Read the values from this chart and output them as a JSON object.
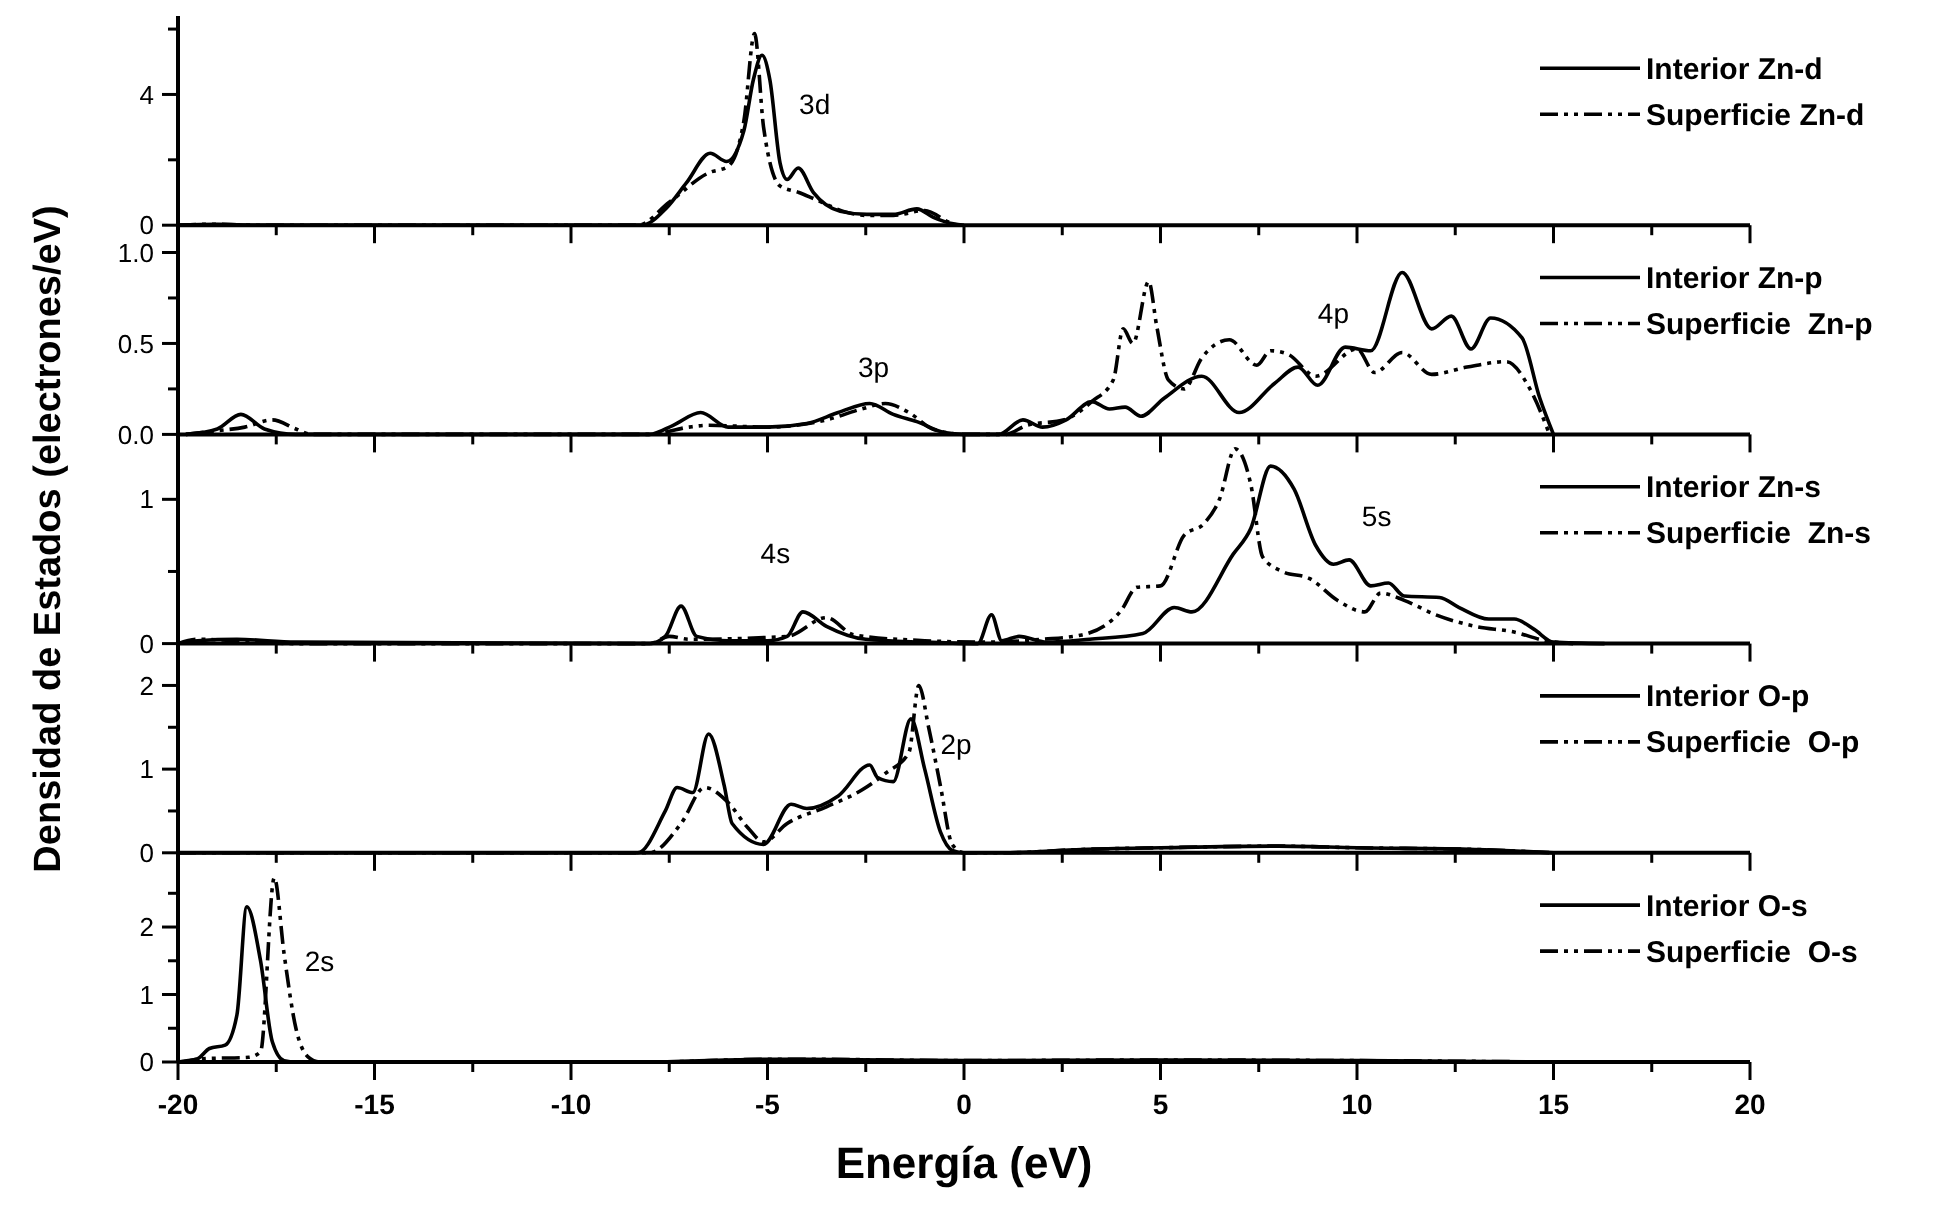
{
  "chart_data": [
    {
      "type": "line",
      "xlim": [
        -20,
        20
      ],
      "ylim": [
        0,
        6.4
      ],
      "tick_labels": "y",
      "legend": "right",
      "xticks": [
        -20,
        {
          "value": -17.5,
          "label": null
        },
        -15,
        {
          "value": -12.5,
          "label": null
        },
        -10,
        {
          "value": -7.5,
          "label": null
        },
        -5,
        {
          "value": -2.5,
          "label": null
        },
        0,
        {
          "value": 2.5,
          "label": null
        },
        5,
        {
          "value": 7.5,
          "label": null
        },
        10,
        {
          "value": 12.5,
          "label": null
        },
        15,
        {
          "value": 17.5,
          "label": null
        },
        20
      ],
      "yticks": [
        0,
        {
          "value": 2,
          "label": null
        },
        4,
        {
          "value": 6,
          "label": null
        }
      ],
      "annotations": [
        "3d"
      ],
      "series": [
        {
          "name": "Interior Zn-d",
          "color": "#000000",
          "line_style": "solid",
          "x": [
            -20,
            -19,
            -18,
            -8.2,
            -7.57,
            -7.06,
            -6.46,
            -6.04,
            -5.6,
            -5.36,
            -5.14,
            -4.94,
            -4.68,
            -4.5,
            -4.22,
            -3.83,
            -3.15,
            -2.47,
            -1.8,
            -1.2,
            -0.78,
            -0.27,
            0
          ],
          "values": [
            0,
            0.03,
            0,
            0,
            0.53,
            1.3,
            2.2,
            1.95,
            2.9,
            4.45,
            5.2,
            4.45,
            1.9,
            1.4,
            1.75,
            1,
            0.43,
            0.33,
            0.33,
            0.5,
            0.24,
            0.04,
            0
          ]
        },
        {
          "name": "Superficie Zn-d",
          "color": "#000000",
          "line_style": "dashdot",
          "x": [
            -20,
            -19,
            -18,
            -8.3,
            -7.5,
            -6.5,
            -6,
            -5.6,
            -5.33,
            -5.1,
            -4.68,
            -4.2,
            -3.8,
            -3,
            -2.5,
            -1.8,
            -1,
            -0.4,
            -0.2
          ],
          "values": [
            0,
            0.03,
            0,
            0,
            0.7,
            1.6,
            1.8,
            3.2,
            5.86,
            3,
            1.2,
            1,
            0.8,
            0.4,
            0.3,
            0.3,
            0.45,
            0.1,
            0
          ]
        }
      ]
    },
    {
      "type": "line",
      "xlim": [
        -20,
        20
      ],
      "ylim": [
        0,
        1.15
      ],
      "tick_labels": "y",
      "legend": "right",
      "xticks": [
        -20,
        {
          "value": -17.5,
          "label": null
        },
        -15,
        {
          "value": -12.5,
          "label": null
        },
        -10,
        {
          "value": -7.5,
          "label": null
        },
        -5,
        {
          "value": -2.5,
          "label": null
        },
        0,
        {
          "value": 2.5,
          "label": null
        },
        5,
        {
          "value": 7.5,
          "label": null
        },
        10,
        {
          "value": 12.5,
          "label": null
        },
        15,
        {
          "value": 17.5,
          "label": null
        },
        20
      ],
      "yticks": [
        {
          "value": 0,
          "label": "0.0"
        },
        {
          "value": 0.25,
          "label": null
        },
        0.5,
        {
          "value": 0.75,
          "label": null
        },
        {
          "value": 1,
          "label": "1.0"
        }
      ],
      "annotations": [
        "3p",
        "4p"
      ],
      "series": [
        {
          "name": "Interior Zn-p",
          "color": "#000000",
          "line_style": "solid",
          "x": [
            -19.8,
            -19,
            -18.4,
            -17.8,
            -17,
            -8,
            -7.4,
            -6.7,
            -6,
            -5,
            -4,
            -3.2,
            -2.4,
            -1.8,
            -1.2,
            -0.5,
            0,
            0.88,
            1.5,
            2,
            2.6,
            3.25,
            3.7,
            4.1,
            4.5,
            5.1,
            6.05,
            7,
            7.9,
            8.5,
            9,
            9.7,
            10.35,
            11.15,
            11.9,
            12.4,
            12.9,
            13.4,
            14.2,
            14.65,
            15
          ],
          "values": [
            0,
            0.03,
            0.11,
            0.03,
            0,
            0,
            0.05,
            0.12,
            0.04,
            0.04,
            0.06,
            0.12,
            0.17,
            0.11,
            0.07,
            0.01,
            0,
            0,
            0.08,
            0.04,
            0.08,
            0.18,
            0.14,
            0.15,
            0.1,
            0.2,
            0.32,
            0.12,
            0.28,
            0.37,
            0.27,
            0.48,
            0.46,
            0.89,
            0.58,
            0.65,
            0.47,
            0.64,
            0.53,
            0.2,
            0
          ]
        },
        {
          "name": "Superficie  Zn-p",
          "color": "#000000",
          "line_style": "dashdot",
          "x": [
            -19.8,
            -19,
            -18.3,
            -17.6,
            -17,
            -16.6,
            -8,
            -7,
            -6.5,
            -5,
            -3.5,
            -2.6,
            -2,
            -1.4,
            -0.8,
            0,
            1.05,
            1.6,
            2.55,
            3.25,
            3.8,
            4.05,
            4.3,
            4.7,
            4.9,
            5.2,
            5.6,
            6.05,
            6.75,
            7.45,
            7.8,
            8.25,
            8.95,
            10,
            10.45,
            11.15,
            11.9,
            12.8,
            13.8,
            14.4,
            14.9
          ],
          "values": [
            0,
            0.02,
            0.04,
            0.08,
            0.03,
            0,
            0,
            0.04,
            0.05,
            0.04,
            0.08,
            0.14,
            0.17,
            0.12,
            0.03,
            0,
            0,
            0.05,
            0.08,
            0.18,
            0.3,
            0.58,
            0.5,
            0.84,
            0.6,
            0.3,
            0.25,
            0.42,
            0.52,
            0.38,
            0.46,
            0.44,
            0.32,
            0.47,
            0.34,
            0.45,
            0.33,
            0.37,
            0.4,
            0.25,
            0
          ]
        }
      ]
    },
    {
      "type": "line",
      "xlim": [
        -20,
        20
      ],
      "ylim": [
        0,
        1.45
      ],
      "tick_labels": "y",
      "legend": "right",
      "xticks": [
        -20,
        {
          "value": -17.5,
          "label": null
        },
        -15,
        {
          "value": -12.5,
          "label": null
        },
        -10,
        {
          "value": -7.5,
          "label": null
        },
        -5,
        {
          "value": -2.5,
          "label": null
        },
        0,
        {
          "value": 2.5,
          "label": null
        },
        5,
        {
          "value": 7.5,
          "label": null
        },
        10,
        {
          "value": 12.5,
          "label": null
        },
        15,
        {
          "value": 17.5,
          "label": null
        },
        20
      ],
      "yticks": [
        0,
        {
          "value": 0.5,
          "label": null
        },
        1
      ],
      "ylabel": "Densidad de Estados (electrones/eV)",
      "annotations": [
        "4s",
        "5s"
      ],
      "series": [
        {
          "name": "Interior Zn-s",
          "color": "#000000",
          "line_style": "solid",
          "x": [
            -20,
            -19.5,
            -18.5,
            -17,
            -8,
            -7.6,
            -7.2,
            -6.8,
            -6,
            -5,
            -4.5,
            -4.1,
            -3.5,
            -2.5,
            -1,
            0.35,
            0.7,
            0.96,
            1.4,
            2.1,
            3.2,
            4.55,
            5.35,
            5.8,
            6.85,
            7.3,
            7.8,
            8.4,
            8.95,
            9.4,
            9.8,
            10.35,
            10.8,
            11.2,
            12.1,
            12.6,
            13.35,
            14,
            14.5,
            15,
            16.3
          ],
          "values": [
            0,
            0.02,
            0.03,
            0.01,
            0,
            0.05,
            0.26,
            0.05,
            0.02,
            0.02,
            0.05,
            0.22,
            0.12,
            0.03,
            0.01,
            0,
            0.2,
            0.02,
            0.05,
            0.01,
            0.03,
            0.07,
            0.25,
            0.22,
            0.62,
            0.8,
            1.23,
            1.07,
            0.68,
            0.55,
            0.58,
            0.4,
            0.42,
            0.33,
            0.32,
            0.25,
            0.17,
            0.17,
            0.1,
            0.01,
            0
          ]
        },
        {
          "name": "Superficie  Zn-s",
          "color": "#000000",
          "line_style": "dashdot",
          "x": [
            -20,
            -19.5,
            -18.5,
            -17,
            -8,
            -7.5,
            -7,
            -4.5,
            -3.5,
            -2.8,
            -1,
            0.5,
            2,
            3,
            4,
            4.4,
            5,
            5.6,
            6.1,
            6.5,
            6.9,
            7.3,
            7.6,
            8.1,
            8.8,
            9.5,
            10.2,
            10.6,
            11.2,
            12,
            13,
            14,
            14.8,
            15.5
          ],
          "values": [
            0,
            0.03,
            0.02,
            0,
            0,
            0.05,
            0.03,
            0.05,
            0.18,
            0.06,
            0.02,
            0.01,
            0.03,
            0.06,
            0.23,
            0.39,
            0.4,
            0.75,
            0.83,
            1,
            1.35,
            1.1,
            0.6,
            0.5,
            0.45,
            0.3,
            0.22,
            0.35,
            0.3,
            0.2,
            0.12,
            0.08,
            0.02,
            0
          ]
        }
      ]
    },
    {
      "type": "line",
      "xlim": [
        -20,
        20
      ],
      "ylim": [
        0,
        2.5
      ],
      "tick_labels": "y",
      "legend": "right",
      "xticks": [
        -20,
        {
          "value": -17.5,
          "label": null
        },
        -15,
        {
          "value": -12.5,
          "label": null
        },
        -10,
        {
          "value": -7.5,
          "label": null
        },
        -5,
        {
          "value": -2.5,
          "label": null
        },
        0,
        {
          "value": 2.5,
          "label": null
        },
        5,
        {
          "value": 7.5,
          "label": null
        },
        10,
        {
          "value": 12.5,
          "label": null
        },
        15,
        {
          "value": 17.5,
          "label": null
        },
        20
      ],
      "yticks": [
        0,
        {
          "value": 0.5,
          "label": null
        },
        1,
        {
          "value": 1.5,
          "label": null
        },
        2
      ],
      "annotations": [
        "2p"
      ],
      "series": [
        {
          "name": "Interior O-p",
          "color": "#000000",
          "line_style": "solid",
          "x": [
            -20,
            -8.3,
            -7.6,
            -7.3,
            -6.9,
            -6.5,
            -6.1,
            -5.9,
            -5.1,
            -4.4,
            -4,
            -3.2,
            -2.4,
            -2.2,
            -1.8,
            -1.35,
            -1,
            -0.6,
            -0.3,
            0,
            1,
            3,
            5,
            8,
            10,
            13,
            15
          ],
          "values": [
            0,
            0,
            0.5,
            0.78,
            0.72,
            1.42,
            0.8,
            0.35,
            0.1,
            0.58,
            0.53,
            0.68,
            1.05,
            0.9,
            0.85,
            1.6,
            1,
            0.25,
            0.03,
            0,
            0,
            0.04,
            0.06,
            0.08,
            0.06,
            0.04,
            0
          ]
        },
        {
          "name": "Superficie  O-p",
          "color": "#000000",
          "line_style": "dashdot",
          "x": [
            -20,
            -8,
            -7.2,
            -6.6,
            -6,
            -5.5,
            -5.1,
            -4.5,
            -3.5,
            -2.6,
            -2,
            -1.4,
            -1.15,
            -0.9,
            -0.6,
            -0.3,
            0,
            1,
            3,
            5,
            8,
            10,
            13,
            15
          ],
          "values": [
            0,
            0,
            0.35,
            0.78,
            0.6,
            0.3,
            0.13,
            0.35,
            0.55,
            0.75,
            0.95,
            1.2,
            2,
            1.5,
            0.8,
            0.1,
            0,
            0,
            0.04,
            0.06,
            0.08,
            0.06,
            0.04,
            0
          ]
        }
      ]
    },
    {
      "type": "line",
      "xlim": [
        -20,
        20
      ],
      "ylim": [
        0,
        3.1
      ],
      "legend": "right",
      "xlabel": "Energía (eV)",
      "xticks": [
        -20,
        {
          "value": -17.5,
          "label": null
        },
        -15,
        {
          "value": -12.5,
          "label": null
        },
        -10,
        {
          "value": -7.5,
          "label": null
        },
        -5,
        {
          "value": -2.5,
          "label": null
        },
        0,
        {
          "value": 2.5,
          "label": null
        },
        5,
        {
          "value": 7.5,
          "label": null
        },
        10,
        {
          "value": 12.5,
          "label": null
        },
        15,
        {
          "value": 17.5,
          "label": null
        },
        20
      ],
      "yticks": [
        0,
        {
          "value": 0.5,
          "label": null
        },
        1,
        {
          "value": 1.5,
          "label": null
        },
        2,
        {
          "value": 2.5,
          "label": null
        }
      ],
      "annotations": [
        "2s"
      ],
      "series": [
        {
          "name": "Interior O-s",
          "color": "#000000",
          "line_style": "solid",
          "x": [
            -20,
            -19.5,
            -19.2,
            -18.8,
            -18.5,
            -18.25,
            -17.9,
            -17.6,
            -17.3,
            -17,
            -8,
            -5,
            -4,
            0,
            5,
            10,
            15
          ],
          "values": [
            0,
            0.05,
            0.2,
            0.25,
            0.7,
            2.3,
            1.5,
            0.3,
            0.02,
            0,
            0,
            0.04,
            0.04,
            0.02,
            0.03,
            0.02,
            0
          ]
        },
        {
          "name": "Superficie  O-s",
          "color": "#000000",
          "line_style": "dashdot",
          "x": [
            -20,
            -19.3,
            -18.2,
            -17.9,
            -17.55,
            -17.3,
            -17,
            -16.7,
            -16.4,
            -8,
            -5,
            -4,
            0,
            5,
            10,
            15
          ],
          "values": [
            0,
            0.05,
            0.07,
            0.15,
            2.73,
            1.6,
            0.5,
            0.08,
            0,
            0,
            0.04,
            0.04,
            0.02,
            0.03,
            0.02,
            0
          ]
        }
      ]
    }
  ]
}
